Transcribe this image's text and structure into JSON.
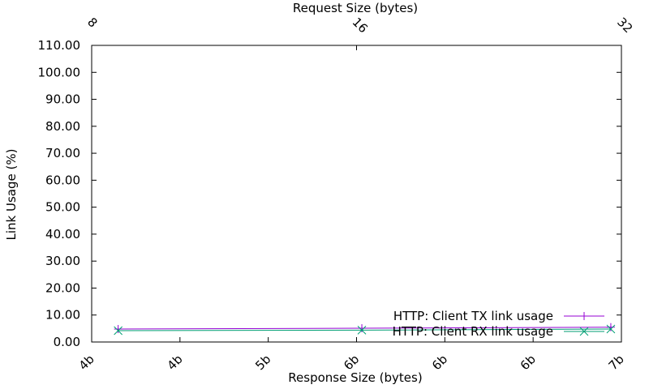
{
  "chart_data": {
    "type": "line",
    "title": "",
    "xlabel": "Response Size (bytes)",
    "ylabel": "Link Usage (%)",
    "x2label": "Request Size (bytes)",
    "ylim": [
      0,
      110
    ],
    "yticks": [
      "0.00",
      "10.00",
      "20.00",
      "30.00",
      "40.00",
      "50.00",
      "60.00",
      "70.00",
      "80.00",
      "90.00",
      "100.00",
      "110.00"
    ],
    "xticks": [
      "4b",
      "4b",
      "5b",
      "6b",
      "6b",
      "6b",
      "7b"
    ],
    "x2ticks": [
      "8",
      "16",
      "32"
    ],
    "legend_position": "bottom-right",
    "grid": false,
    "series": [
      {
        "name": "HTTP: Client TX link usage",
        "color": "#9400d3",
        "marker": "plus",
        "x": [
          0.05,
          0.51,
          0.98
        ],
        "y": [
          4.8,
          5.1,
          5.5
        ]
      },
      {
        "name": "HTTP: Client RX link usage",
        "color": "#009e73",
        "marker": "cross",
        "x": [
          0.05,
          0.51,
          0.98
        ],
        "y": [
          4.2,
          4.4,
          4.8
        ]
      }
    ]
  }
}
